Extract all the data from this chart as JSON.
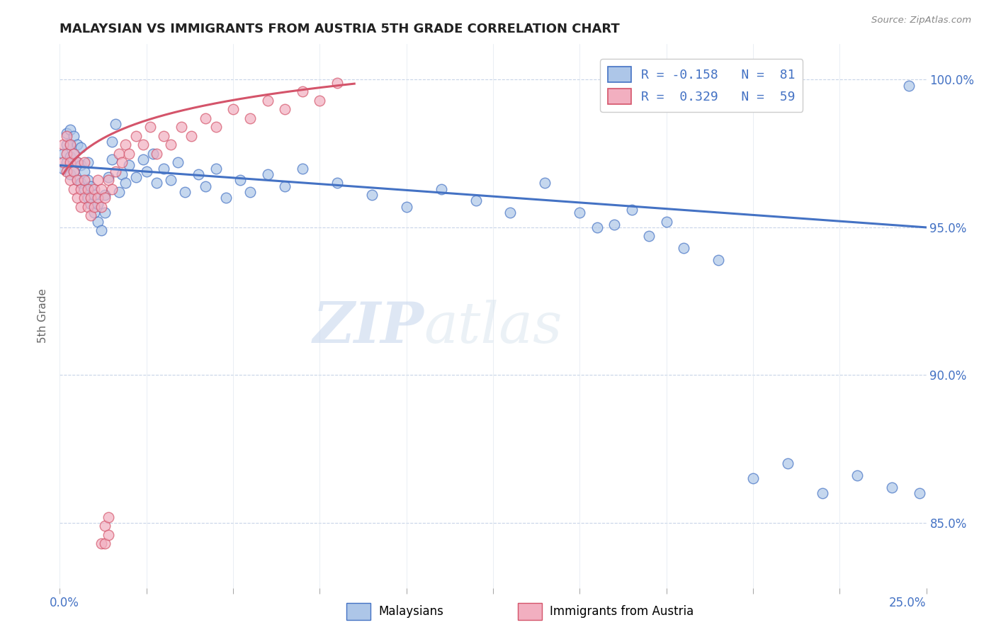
{
  "title": "MALAYSIAN VS IMMIGRANTS FROM AUSTRIA 5TH GRADE CORRELATION CHART",
  "source": "Source: ZipAtlas.com",
  "ylabel": "5th Grade",
  "ytick_labels": [
    "85.0%",
    "90.0%",
    "95.0%",
    "100.0%"
  ],
  "ytick_values": [
    0.85,
    0.9,
    0.95,
    1.0
  ],
  "xlim": [
    0.0,
    0.25
  ],
  "ylim": [
    0.828,
    1.012
  ],
  "blue_color": "#adc6e8",
  "pink_color": "#f2afc0",
  "blue_line_color": "#4472c4",
  "pink_line_color": "#d4546a",
  "watermark_zip": "ZIP",
  "watermark_atlas": "atlas",
  "malaysians_x": [
    0.001,
    0.001,
    0.002,
    0.002,
    0.002,
    0.003,
    0.003,
    0.003,
    0.003,
    0.004,
    0.004,
    0.004,
    0.005,
    0.005,
    0.005,
    0.006,
    0.006,
    0.006,
    0.007,
    0.007,
    0.008,
    0.008,
    0.008,
    0.009,
    0.009,
    0.01,
    0.01,
    0.011,
    0.011,
    0.012,
    0.013,
    0.013,
    0.014,
    0.015,
    0.015,
    0.016,
    0.017,
    0.018,
    0.019,
    0.02,
    0.022,
    0.024,
    0.025,
    0.027,
    0.028,
    0.03,
    0.032,
    0.034,
    0.036,
    0.04,
    0.042,
    0.045,
    0.048,
    0.052,
    0.055,
    0.06,
    0.065,
    0.07,
    0.08,
    0.09,
    0.1,
    0.11,
    0.12,
    0.13,
    0.14,
    0.15,
    0.16,
    0.17,
    0.18,
    0.19,
    0.2,
    0.21,
    0.22,
    0.23,
    0.24,
    0.155,
    0.165,
    0.175,
    0.245,
    0.248
  ],
  "malaysians_y": [
    0.97,
    0.975,
    0.972,
    0.978,
    0.982,
    0.968,
    0.974,
    0.978,
    0.983,
    0.969,
    0.975,
    0.981,
    0.966,
    0.972,
    0.978,
    0.965,
    0.971,
    0.977,
    0.963,
    0.969,
    0.96,
    0.966,
    0.972,
    0.958,
    0.964,
    0.955,
    0.961,
    0.952,
    0.958,
    0.949,
    0.955,
    0.961,
    0.967,
    0.973,
    0.979,
    0.985,
    0.962,
    0.968,
    0.965,
    0.971,
    0.967,
    0.973,
    0.969,
    0.975,
    0.965,
    0.97,
    0.966,
    0.972,
    0.962,
    0.968,
    0.964,
    0.97,
    0.96,
    0.966,
    0.962,
    0.968,
    0.964,
    0.97,
    0.965,
    0.961,
    0.957,
    0.963,
    0.959,
    0.955,
    0.965,
    0.955,
    0.951,
    0.947,
    0.943,
    0.939,
    0.865,
    0.87,
    0.86,
    0.866,
    0.862,
    0.95,
    0.956,
    0.952,
    0.998,
    0.86
  ],
  "austria_x": [
    0.001,
    0.001,
    0.002,
    0.002,
    0.002,
    0.003,
    0.003,
    0.003,
    0.004,
    0.004,
    0.004,
    0.005,
    0.005,
    0.005,
    0.006,
    0.006,
    0.007,
    0.007,
    0.007,
    0.008,
    0.008,
    0.009,
    0.009,
    0.01,
    0.01,
    0.011,
    0.011,
    0.012,
    0.012,
    0.013,
    0.014,
    0.015,
    0.016,
    0.017,
    0.018,
    0.019,
    0.02,
    0.022,
    0.024,
    0.026,
    0.028,
    0.03,
    0.032,
    0.035,
    0.038,
    0.042,
    0.045,
    0.05,
    0.055,
    0.06,
    0.065,
    0.07,
    0.075,
    0.08,
    0.012,
    0.013,
    0.014,
    0.013,
    0.014
  ],
  "austria_y": [
    0.972,
    0.978,
    0.969,
    0.975,
    0.981,
    0.966,
    0.972,
    0.978,
    0.963,
    0.969,
    0.975,
    0.96,
    0.966,
    0.972,
    0.957,
    0.963,
    0.96,
    0.966,
    0.972,
    0.957,
    0.963,
    0.954,
    0.96,
    0.957,
    0.963,
    0.96,
    0.966,
    0.957,
    0.963,
    0.96,
    0.966,
    0.963,
    0.969,
    0.975,
    0.972,
    0.978,
    0.975,
    0.981,
    0.978,
    0.984,
    0.975,
    0.981,
    0.978,
    0.984,
    0.981,
    0.987,
    0.984,
    0.99,
    0.987,
    0.993,
    0.99,
    0.996,
    0.993,
    0.999,
    0.843,
    0.849,
    0.852,
    0.843,
    0.846
  ]
}
